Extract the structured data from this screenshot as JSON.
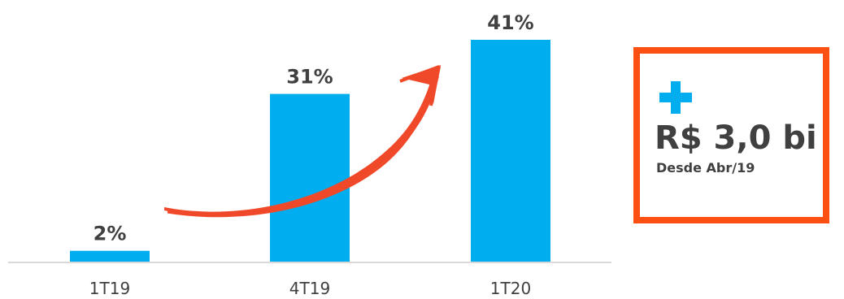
{
  "chart_data": {
    "type": "bar",
    "categories": [
      "1T19",
      "4T19",
      "1T20"
    ],
    "values": [
      2,
      31,
      41
    ],
    "value_labels": [
      "2%",
      "31%",
      "41%"
    ],
    "title": "",
    "xlabel": "",
    "ylabel": "",
    "ylim": [
      0,
      41
    ],
    "grid": false,
    "legend": "none",
    "bar_color": "#00AEEF",
    "arrow_color": "#F0492A"
  },
  "callout": {
    "amount": "R$ 3,0 bi",
    "note": "Desde Abr/19",
    "border_color": "#FC4F12",
    "icon": "plus-icon",
    "icon_color": "#00AEEF"
  }
}
